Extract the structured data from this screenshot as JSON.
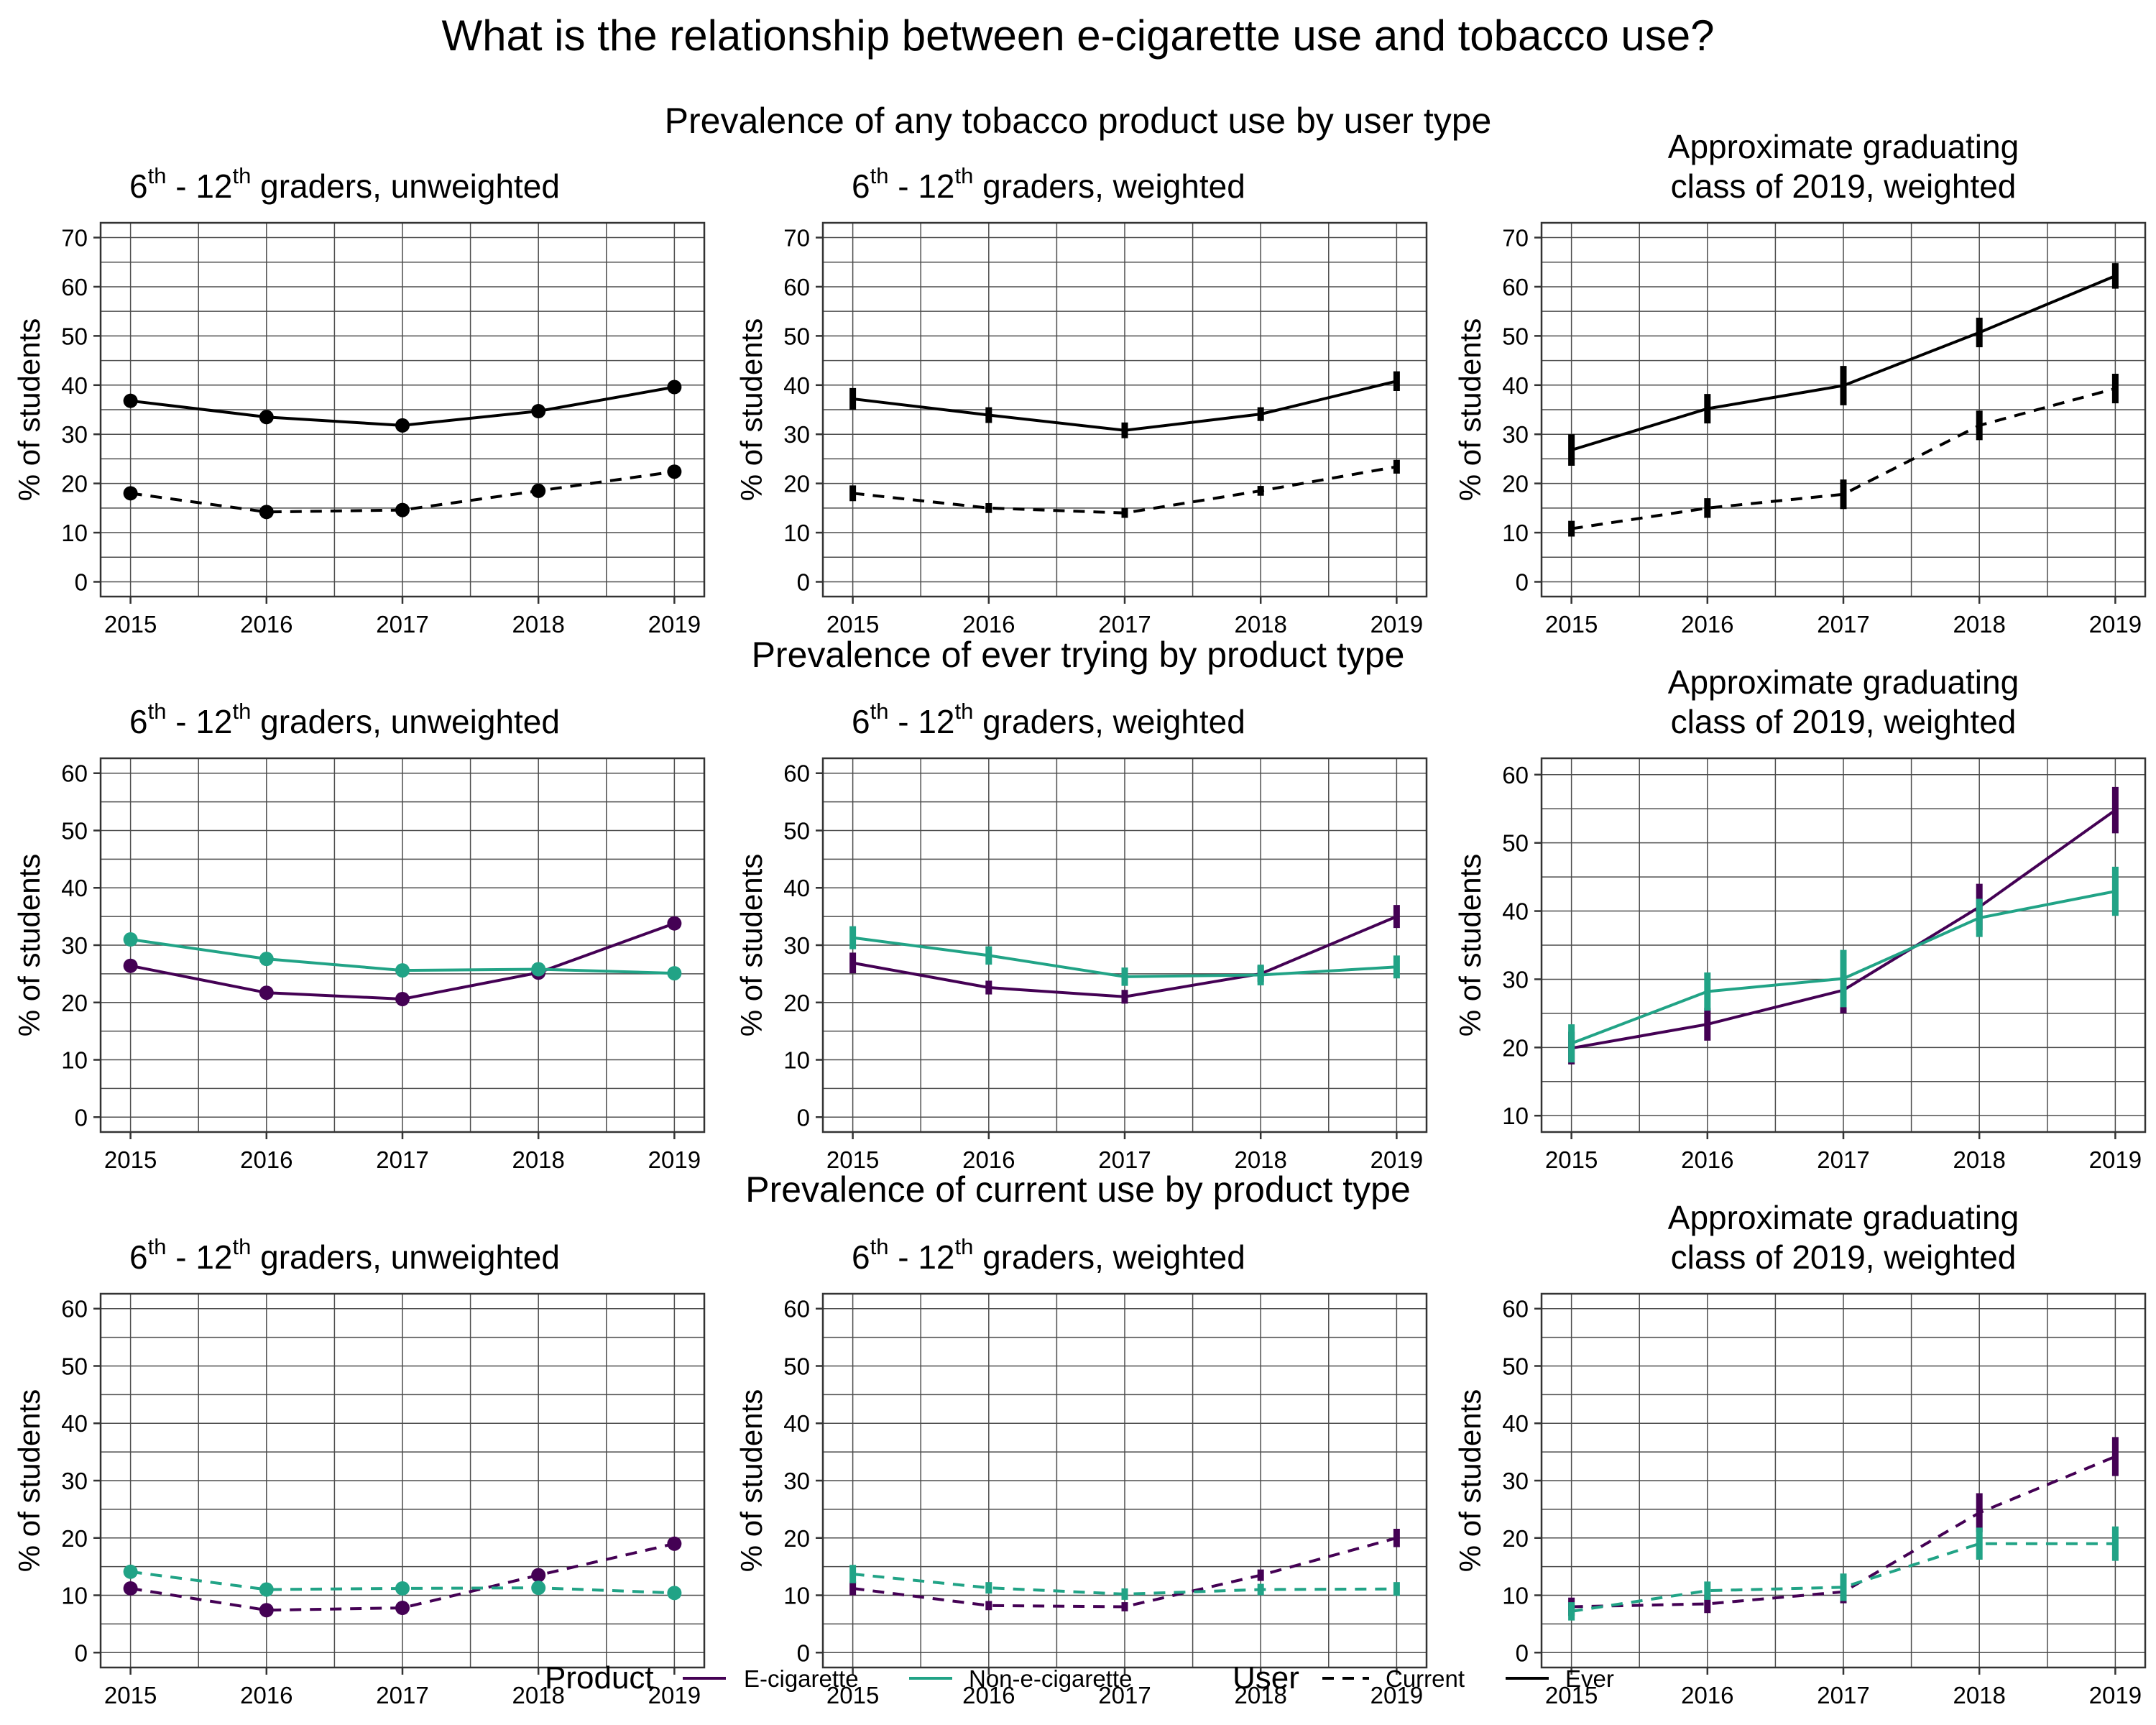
{
  "title": "What is the relationship between e-cigarette use and tobacco use?",
  "colors": {
    "ever": "#000000",
    "ecig": "#440154",
    "nonecig": "#21a386",
    "grid": "#4d4d4d"
  },
  "sections": [
    {
      "title": "Prevalence of any tobacco product use by user type",
      "panels": [
        {
          "subtitle_pre": "6",
          "sup1": "th",
          "subtitle_mid": " - 12",
          "sup2": "th",
          "subtitle_post": " graders, unweighted",
          "ylabel": "% of students",
          "ylim": [
            -3,
            73
          ],
          "yticks": [
            0,
            10,
            20,
            30,
            40,
            50,
            60,
            70
          ],
          "xticks": [
            2015,
            2016,
            2017,
            2018,
            2019
          ],
          "style": "points",
          "series": [
            {
              "product": "Any tobacco",
              "user": "Ever",
              "color": "#000000",
              "values": [
                36.8,
                33.5,
                31.8,
                34.7,
                39.6
              ]
            },
            {
              "product": "Any tobacco",
              "user": "Current",
              "color": "#000000",
              "values": [
                18.0,
                14.2,
                14.6,
                18.5,
                22.4
              ]
            }
          ]
        },
        {
          "subtitle_pre": "6",
          "sup1": "th",
          "subtitle_mid": " - 12",
          "sup2": "th",
          "subtitle_post": " graders, weighted",
          "ylabel": "% of students",
          "ylim": [
            -3,
            73
          ],
          "yticks": [
            0,
            10,
            20,
            30,
            40,
            50,
            60,
            70
          ],
          "xticks": [
            2015,
            2016,
            2017,
            2018,
            2019
          ],
          "style": "errorbars",
          "series": [
            {
              "product": "Any tobacco",
              "user": "Ever",
              "color": "#000000",
              "values": [
                37.2,
                33.9,
                30.8,
                34.1,
                40.8
              ],
              "err": [
                2.2,
                1.6,
                1.6,
                1.4,
                2.0
              ]
            },
            {
              "product": "Any tobacco",
              "user": "Current",
              "color": "#000000",
              "values": [
                18.0,
                15.0,
                14.0,
                18.5,
                23.4
              ],
              "err": [
                1.6,
                1.0,
                1.0,
                1.0,
                1.4
              ]
            }
          ]
        },
        {
          "subtitle_lines": [
            "Approximate graduating",
            "class of 2019, weighted"
          ],
          "ylabel": "% of students",
          "ylim": [
            -3,
            73
          ],
          "yticks": [
            0,
            10,
            20,
            30,
            40,
            50,
            60,
            70
          ],
          "xticks": [
            2015,
            2016,
            2017,
            2018,
            2019
          ],
          "style": "errorbars",
          "series": [
            {
              "product": "Any tobacco",
              "user": "Ever",
              "color": "#000000",
              "values": [
                26.8,
                35.2,
                39.9,
                50.7,
                62.2
              ],
              "err": [
                3.2,
                3.0,
                4.0,
                3.0,
                2.6
              ]
            },
            {
              "product": "Any tobacco",
              "user": "Current",
              "color": "#000000",
              "values": [
                10.8,
                15.0,
                17.8,
                31.8,
                39.3
              ],
              "err": [
                1.6,
                2.0,
                3.0,
                3.0,
                3.0
              ]
            }
          ]
        }
      ]
    },
    {
      "title": "Prevalence of ever trying by product type",
      "panels": [
        {
          "subtitle_pre": "6",
          "sup1": "th",
          "subtitle_mid": " - 12",
          "sup2": "th",
          "subtitle_post": " graders, unweighted",
          "ylabel": "% of students",
          "ylim": [
            -2.6,
            62.6
          ],
          "yticks": [
            0,
            10,
            20,
            30,
            40,
            50,
            60
          ],
          "xticks": [
            2015,
            2016,
            2017,
            2018,
            2019
          ],
          "style": "points",
          "series": [
            {
              "product": "E-cigarette",
              "user": "Ever",
              "color": "#440154",
              "values": [
                26.4,
                21.7,
                20.6,
                25.2,
                33.8
              ]
            },
            {
              "product": "Non-e-cigarette",
              "user": "Ever",
              "color": "#21a386",
              "values": [
                31.0,
                27.6,
                25.6,
                25.8,
                25.1
              ]
            }
          ]
        },
        {
          "subtitle_pre": "6",
          "sup1": "th",
          "subtitle_mid": " - 12",
          "sup2": "th",
          "subtitle_post": " graders, weighted",
          "ylabel": "% of students",
          "ylim": [
            -2.6,
            62.6
          ],
          "yticks": [
            0,
            10,
            20,
            30,
            40,
            50,
            60
          ],
          "xticks": [
            2015,
            2016,
            2017,
            2018,
            2019
          ],
          "style": "errorbars",
          "series": [
            {
              "product": "E-cigarette",
              "user": "Ever",
              "color": "#440154",
              "values": [
                26.9,
                22.6,
                21.0,
                25.0,
                35.0
              ],
              "err": [
                1.8,
                1.2,
                1.2,
                1.4,
                2.0
              ]
            },
            {
              "product": "Non-e-cigarette",
              "user": "Ever",
              "color": "#21a386",
              "values": [
                31.3,
                28.2,
                24.5,
                24.8,
                26.2
              ],
              "err": [
                2.0,
                1.6,
                1.6,
                1.8,
                2.0
              ]
            }
          ]
        },
        {
          "subtitle_lines": [
            "Approximate graduating",
            "class of 2019, weighted"
          ],
          "ylabel": "% of students",
          "ylim": [
            7.6,
            62.4
          ],
          "yticks": [
            10,
            20,
            30,
            40,
            50,
            60
          ],
          "xticks": [
            2015,
            2016,
            2017,
            2018,
            2019
          ],
          "style": "errorbars",
          "series": [
            {
              "product": "E-cigarette",
              "user": "Ever",
              "color": "#440154",
              "values": [
                19.9,
                23.4,
                28.4,
                40.6,
                54.8
              ],
              "err": [
                2.4,
                2.4,
                3.4,
                3.4,
                3.4
              ]
            },
            {
              "product": "Non-e-cigarette",
              "user": "Ever",
              "color": "#21a386",
              "values": [
                20.6,
                28.2,
                30.1,
                39.0,
                42.9
              ],
              "err": [
                2.8,
                2.8,
                4.2,
                2.8,
                3.6
              ]
            }
          ]
        }
      ]
    },
    {
      "title": "Prevalence of current use by product type",
      "panels": [
        {
          "subtitle_pre": "6",
          "sup1": "th",
          "subtitle_mid": " - 12",
          "sup2": "th",
          "subtitle_post": " graders, unweighted",
          "ylabel": "% of students",
          "ylim": [
            -2.6,
            62.6
          ],
          "yticks": [
            0,
            10,
            20,
            30,
            40,
            50,
            60
          ],
          "xticks": [
            2015,
            2016,
            2017,
            2018,
            2019
          ],
          "style": "points",
          "series": [
            {
              "product": "E-cigarette",
              "user": "Current",
              "color": "#440154",
              "values": [
                11.2,
                7.4,
                7.8,
                13.5,
                19.0
              ]
            },
            {
              "product": "Non-e-cigarette",
              "user": "Current",
              "color": "#21a386",
              "values": [
                14.1,
                11.0,
                11.2,
                11.3,
                10.4
              ]
            }
          ]
        },
        {
          "subtitle_pre": "6",
          "sup1": "th",
          "subtitle_mid": " - 12",
          "sup2": "th",
          "subtitle_post": " graders, weighted",
          "ylabel": "% of students",
          "ylim": [
            -2.6,
            62.6
          ],
          "yticks": [
            0,
            10,
            20,
            30,
            40,
            50,
            60
          ],
          "xticks": [
            2015,
            2016,
            2017,
            2018,
            2019
          ],
          "style": "errorbars",
          "series": [
            {
              "product": "E-cigarette",
              "user": "Current",
              "color": "#440154",
              "values": [
                11.2,
                8.2,
                8.0,
                13.5,
                20.0
              ],
              "err": [
                1.2,
                0.8,
                0.8,
                1.0,
                1.6
              ]
            },
            {
              "product": "Non-e-cigarette",
              "user": "Current",
              "color": "#21a386",
              "values": [
                13.7,
                11.3,
                10.2,
                11.0,
                11.1
              ],
              "err": [
                1.6,
                1.0,
                1.0,
                1.0,
                1.2
              ]
            }
          ]
        },
        {
          "subtitle_lines": [
            "Approximate graduating",
            "class of 2019, weighted"
          ],
          "ylabel": "% of students",
          "ylim": [
            -2.6,
            62.6
          ],
          "yticks": [
            0,
            10,
            20,
            30,
            40,
            50,
            60
          ],
          "xticks": [
            2015,
            2016,
            2017,
            2018,
            2019
          ],
          "style": "errorbars",
          "series": [
            {
              "product": "E-cigarette",
              "user": "Current",
              "color": "#440154",
              "values": [
                8.0,
                8.5,
                10.6,
                24.4,
                34.2
              ],
              "err": [
                1.6,
                1.6,
                2.0,
                3.4,
                3.4
              ]
            },
            {
              "product": "Non-e-cigarette",
              "user": "Current",
              "color": "#21a386",
              "values": [
                7.2,
                10.8,
                11.4,
                19.0,
                19.0
              ],
              "err": [
                1.6,
                1.6,
                2.4,
                2.8,
                3.0
              ]
            }
          ]
        }
      ]
    }
  ],
  "legend": {
    "product_title": "Product",
    "product_items": [
      {
        "label": "E-cigarette",
        "color": "#440154"
      },
      {
        "label": "Non-e-cigarette",
        "color": "#21a386"
      }
    ],
    "user_title": "User",
    "user_items": [
      {
        "label": "Current",
        "dash": true
      },
      {
        "label": "Ever",
        "dash": false
      }
    ]
  },
  "chart_data": [
    {
      "type": "line",
      "title": "6th - 12th graders, unweighted",
      "ylabel": "% of students",
      "x": [
        2015,
        2016,
        2017,
        2018,
        2019
      ],
      "ylim": [
        0,
        70
      ],
      "series": [
        {
          "name": "Ever",
          "values": [
            36.8,
            33.5,
            31.8,
            34.7,
            39.6
          ]
        },
        {
          "name": "Current",
          "values": [
            18.0,
            14.2,
            14.6,
            18.5,
            22.4
          ]
        }
      ]
    },
    {
      "type": "line",
      "title": "6th - 12th graders, weighted",
      "ylabel": "% of students",
      "x": [
        2015,
        2016,
        2017,
        2018,
        2019
      ],
      "ylim": [
        0,
        70
      ],
      "series": [
        {
          "name": "Ever",
          "values": [
            37.2,
            33.9,
            30.8,
            34.1,
            40.8
          ]
        },
        {
          "name": "Current",
          "values": [
            18.0,
            15.0,
            14.0,
            18.5,
            23.4
          ]
        }
      ]
    },
    {
      "type": "line",
      "title": "Approximate graduating class of 2019, weighted",
      "ylabel": "% of students",
      "x": [
        2015,
        2016,
        2017,
        2018,
        2019
      ],
      "ylim": [
        0,
        70
      ],
      "series": [
        {
          "name": "Ever",
          "values": [
            26.8,
            35.2,
            39.9,
            50.7,
            62.2
          ]
        },
        {
          "name": "Current",
          "values": [
            10.8,
            15.0,
            17.8,
            31.8,
            39.3
          ]
        }
      ]
    },
    {
      "type": "line",
      "title": "6th - 12th graders, unweighted",
      "ylabel": "% of students",
      "x": [
        2015,
        2016,
        2017,
        2018,
        2019
      ],
      "ylim": [
        0,
        60
      ],
      "series": [
        {
          "name": "E-cigarette",
          "values": [
            26.4,
            21.7,
            20.6,
            25.2,
            33.8
          ]
        },
        {
          "name": "Non-e-cigarette",
          "values": [
            31.0,
            27.6,
            25.6,
            25.8,
            25.1
          ]
        }
      ]
    },
    {
      "type": "line",
      "title": "6th - 12th graders, weighted",
      "ylabel": "% of students",
      "x": [
        2015,
        2016,
        2017,
        2018,
        2019
      ],
      "ylim": [
        0,
        60
      ],
      "series": [
        {
          "name": "E-cigarette",
          "values": [
            26.9,
            22.6,
            21.0,
            25.0,
            35.0
          ]
        },
        {
          "name": "Non-e-cigarette",
          "values": [
            31.3,
            28.2,
            24.5,
            24.8,
            26.2
          ]
        }
      ]
    },
    {
      "type": "line",
      "title": "Approximate graduating class of 2019, weighted",
      "ylabel": "% of students",
      "x": [
        2015,
        2016,
        2017,
        2018,
        2019
      ],
      "ylim": [
        10,
        60
      ],
      "series": [
        {
          "name": "E-cigarette",
          "values": [
            19.9,
            23.4,
            28.4,
            40.6,
            54.8
          ]
        },
        {
          "name": "Non-e-cigarette",
          "values": [
            20.6,
            28.2,
            30.1,
            39.0,
            42.9
          ]
        }
      ]
    },
    {
      "type": "line",
      "title": "6th - 12th graders, unweighted",
      "ylabel": "% of students",
      "x": [
        2015,
        2016,
        2017,
        2018,
        2019
      ],
      "ylim": [
        0,
        60
      ],
      "series": [
        {
          "name": "E-cigarette",
          "values": [
            11.2,
            7.4,
            7.8,
            13.5,
            19.0
          ]
        },
        {
          "name": "Non-e-cigarette",
          "values": [
            14.1,
            11.0,
            11.2,
            11.3,
            10.4
          ]
        }
      ]
    },
    {
      "type": "line",
      "title": "6th - 12th graders, weighted",
      "ylabel": "% of students",
      "x": [
        2015,
        2016,
        2017,
        2018,
        2019
      ],
      "ylim": [
        0,
        60
      ],
      "series": [
        {
          "name": "E-cigarette",
          "values": [
            11.2,
            8.2,
            8.0,
            13.5,
            20.0
          ]
        },
        {
          "name": "Non-e-cigarette",
          "values": [
            13.7,
            11.3,
            10.2,
            11.0,
            11.1
          ]
        }
      ]
    },
    {
      "type": "line",
      "title": "Approximate graduating class of 2019, weighted",
      "ylabel": "% of students",
      "x": [
        2015,
        2016,
        2017,
        2018,
        2019
      ],
      "ylim": [
        0,
        60
      ],
      "series": [
        {
          "name": "E-cigarette",
          "values": [
            8.0,
            8.5,
            10.6,
            24.4,
            34.2
          ]
        },
        {
          "name": "Non-e-cigarette",
          "values": [
            7.2,
            10.8,
            11.4,
            19.0,
            19.0
          ]
        }
      ]
    }
  ]
}
